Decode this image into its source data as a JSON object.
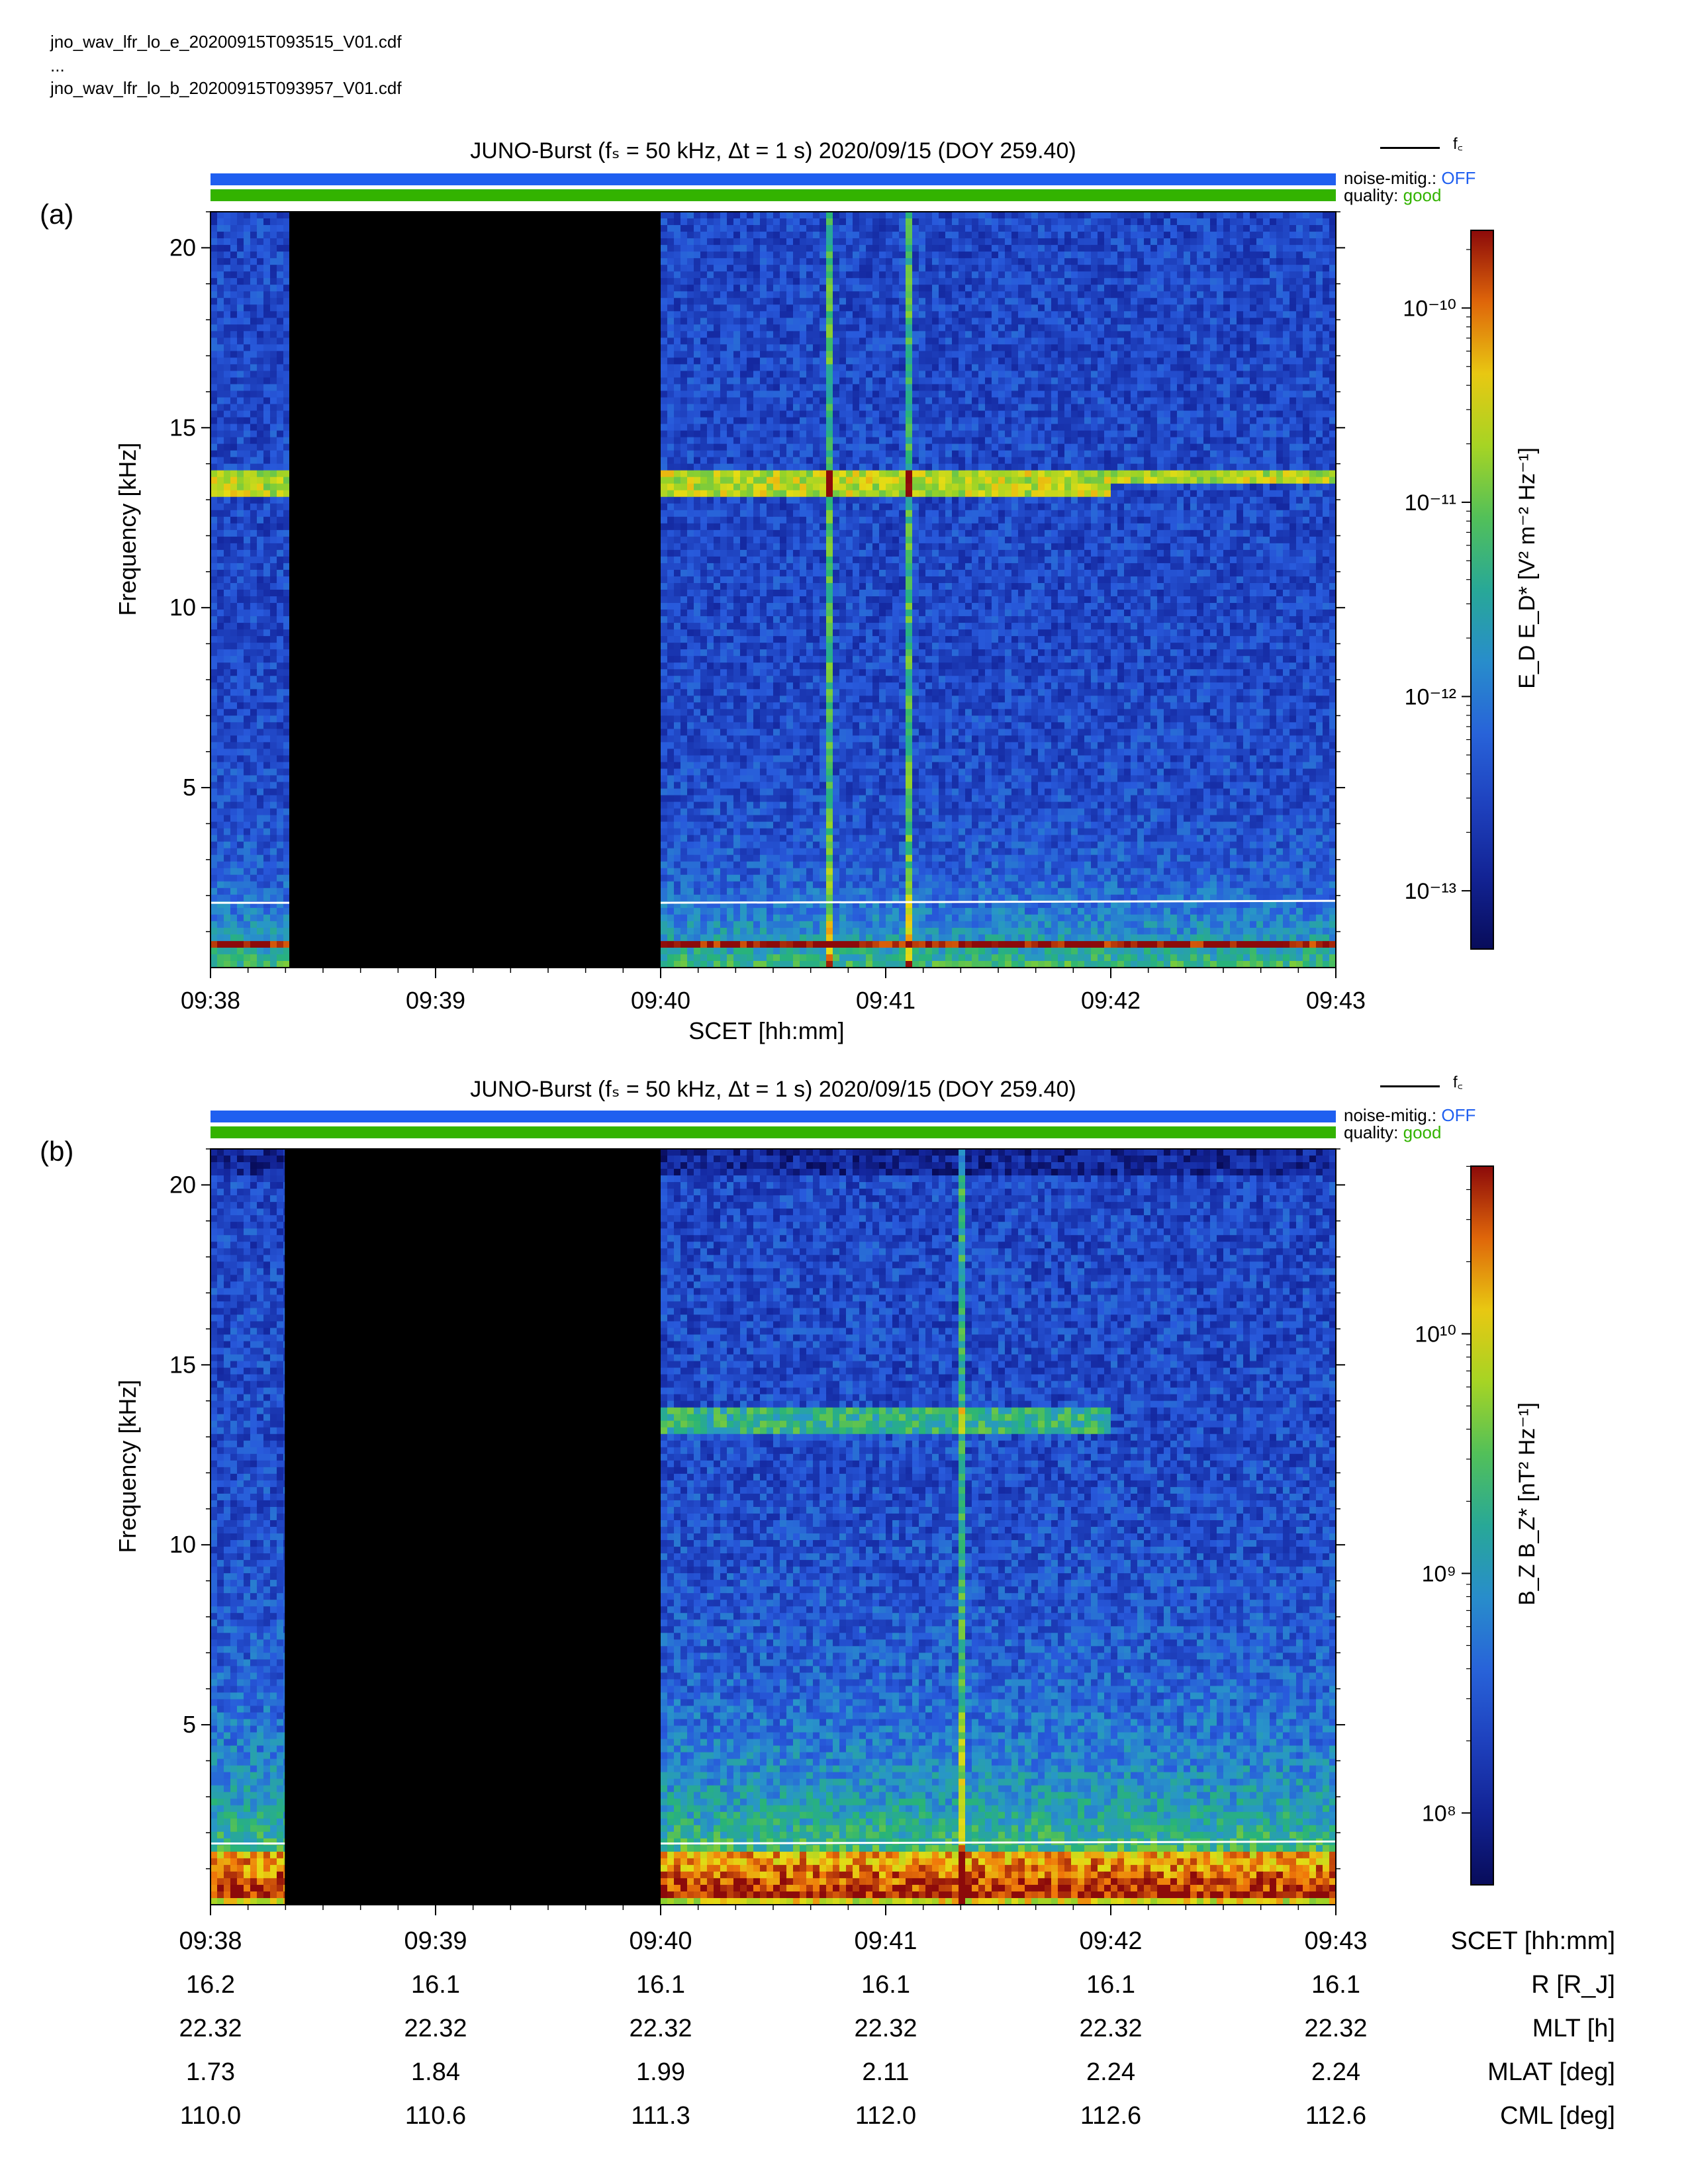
{
  "files": {
    "line1": "jno_wav_lfr_lo_e_20200915T093515_V01.cdf",
    "line2": "...",
    "line3": "jno_wav_lfr_lo_b_20200915T093957_V01.cdf"
  },
  "panel_common": {
    "title": "JUNO-Burst (fₛ = 50 kHz, Δt = 1 s)  2020/09/15 (DOY 259.40)",
    "noise_label": "noise-mitig.:",
    "noise_value": "OFF",
    "quality_label": "quality:",
    "quality_value": "good",
    "legend_fc": "f꜀",
    "colors": {
      "noise_bar": "#1f5ff0",
      "quality_bar": "#33b300",
      "fc_line": "#ffffff",
      "data_gap": "#000000"
    }
  },
  "chart_data": [
    {
      "type": "heatmap",
      "panel_label": "(a)",
      "title": "JUNO-Burst (fₛ = 50 kHz, Δt = 1 s)  2020/09/15 (DOY 259.40)",
      "xlabel": "SCET [hh:mm]",
      "ylabel": "Frequency [kHz]",
      "x_ticks": [
        "09:38",
        "09:39",
        "09:40",
        "09:41",
        "09:42",
        "09:43"
      ],
      "y_ticks": [
        20,
        15,
        10,
        5
      ],
      "ylim": [
        0,
        21
      ],
      "colorbar_label": "E_D E_D* [V² m⁻² Hz⁻¹]",
      "colorbar_ticks": [
        "10⁻¹⁰",
        "10⁻¹¹",
        "10⁻¹²",
        "10⁻¹³"
      ],
      "colorbar_log_range": [
        -13.3,
        -9.6
      ],
      "colorbar_tick_exponents": [
        -10,
        -11,
        -12,
        -13
      ],
      "data_gap_minutes": [
        0.35,
        2.0
      ],
      "fc_kHz": 1.8,
      "features": {
        "emission_lines_kHz": [
          13.7,
          13.2
        ],
        "emission_line_extent_min": [
          [
            0.0,
            5.0
          ],
          [
            0.0,
            4.0
          ]
        ],
        "spike_minutes": [
          2.75,
          3.1
        ],
        "low_freq_band_kHz": [
          0.5,
          0.7
        ]
      }
    },
    {
      "type": "heatmap",
      "panel_label": "(b)",
      "title": "JUNO-Burst (fₛ = 50 kHz, Δt = 1 s)  2020/09/15 (DOY 259.40)",
      "xlabel": "SCET [hh:mm]",
      "ylabel": "Frequency [kHz]",
      "x_ticks": [
        "09:38",
        "09:39",
        "09:40",
        "09:41",
        "09:42",
        "09:43"
      ],
      "y_ticks": [
        20,
        15,
        10,
        5
      ],
      "ylim": [
        0,
        21
      ],
      "colorbar_label": "B_Z B_Z* [nT² Hz⁻¹]",
      "colorbar_ticks": [
        "10¹⁰",
        "10⁹",
        "10⁸"
      ],
      "colorbar_log_range": [
        7.7,
        10.7
      ],
      "colorbar_tick_exponents": [
        10,
        9,
        8
      ],
      "data_gap_minutes": [
        0.33,
        2.0
      ],
      "fc_kHz": 1.7,
      "features": {
        "emission_lines_kHz": [
          13.6,
          13.2
        ],
        "emission_line_extent_min": [
          [
            2.0,
            4.0
          ],
          [
            2.0,
            4.0
          ]
        ],
        "spike_minutes": [
          3.35
        ],
        "low_freq_band_kHz": [
          0.2,
          1.5
        ]
      }
    }
  ],
  "ephemeris": {
    "rows": [
      {
        "label": "SCET [hh:mm]",
        "values": [
          "09:38",
          "09:39",
          "09:40",
          "09:41",
          "09:42",
          "09:43"
        ]
      },
      {
        "label": "R [R_J]",
        "values": [
          "16.2",
          "16.1",
          "16.1",
          "16.1",
          "16.1",
          "16.1"
        ]
      },
      {
        "label": "MLT [h]",
        "values": [
          "22.32",
          "22.32",
          "22.32",
          "22.32",
          "22.32",
          "22.32"
        ]
      },
      {
        "label": "MLAT [deg]",
        "values": [
          "1.73",
          "1.84",
          "1.99",
          "2.11",
          "2.24",
          "2.24"
        ]
      },
      {
        "label": "CML [deg]",
        "values": [
          "110.0",
          "110.6",
          "111.3",
          "112.0",
          "112.6",
          "112.6"
        ]
      }
    ]
  }
}
